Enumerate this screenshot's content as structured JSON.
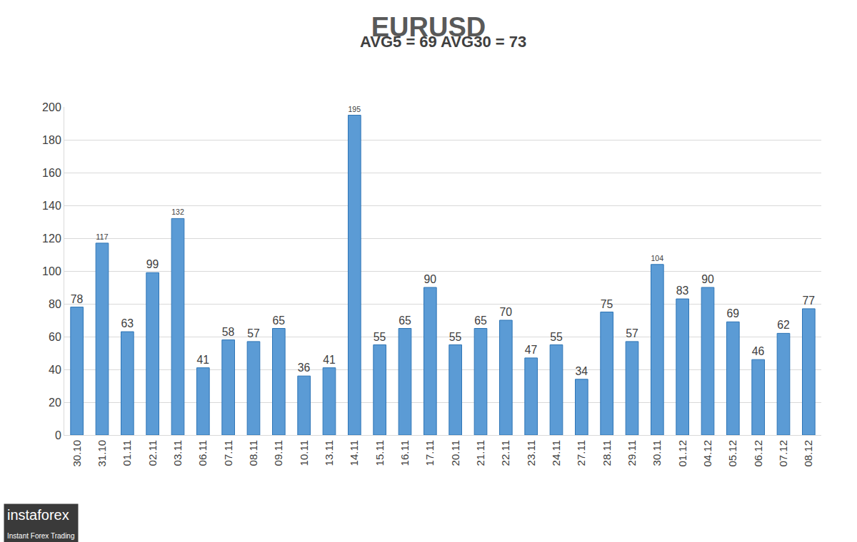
{
  "chart_data": {
    "type": "bar",
    "title": "EURUSD",
    "subtitle": "AVG5 = 69 AVG30 = 73",
    "categories": [
      "30.10",
      "31.10",
      "01.11",
      "02.11",
      "03.11",
      "06.11",
      "07.11",
      "08.11",
      "09.11",
      "10.11",
      "13.11",
      "14.11",
      "15.11",
      "16.11",
      "17.11",
      "20.11",
      "21.11",
      "22.11",
      "23.11",
      "24.11",
      "27.11",
      "28.11",
      "29.11",
      "30.11",
      "01.12",
      "04.12",
      "05.12",
      "06.12",
      "07.12",
      "08.12"
    ],
    "values": [
      78,
      117,
      63,
      99,
      132,
      41,
      58,
      57,
      65,
      36,
      41,
      195,
      55,
      65,
      90,
      55,
      65,
      70,
      47,
      55,
      34,
      75,
      57,
      104,
      83,
      90,
      69,
      46,
      62,
      77
    ],
    "color": "#5b9bd5",
    "ylim": [
      0,
      200
    ],
    "yticks": [
      0,
      20,
      40,
      60,
      80,
      100,
      120,
      140,
      160,
      180,
      200
    ],
    "grid": true,
    "data_labels": true,
    "annotations": [
      "instaforex",
      "Instant Forex Trading"
    ]
  }
}
